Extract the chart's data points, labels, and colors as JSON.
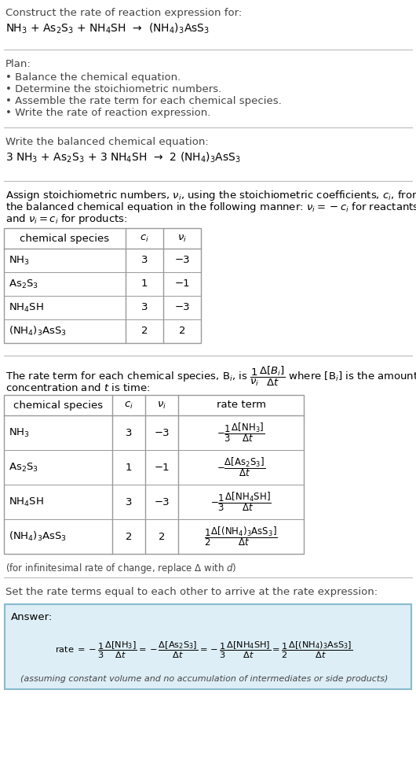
{
  "bg_color": "#ffffff",
  "title_text": "Construct the rate of reaction expression for:",
  "reaction_unbalanced": "NH$_3$ + As$_2$S$_3$ + NH$_4$SH  →  (NH$_4$)$_3$AsS$_3$",
  "plan_header": "Plan:",
  "plan_items": [
    "• Balance the chemical equation.",
    "• Determine the stoichiometric numbers.",
    "• Assemble the rate term for each chemical species.",
    "• Write the rate of reaction expression."
  ],
  "balanced_header": "Write the balanced chemical equation:",
  "reaction_balanced": "3 NH$_3$ + As$_2$S$_3$ + 3 NH$_4$SH  →  2 (NH$_4$)$_3$AsS$_3$",
  "stoich_intro_lines": [
    "Assign stoichiometric numbers, $\\nu_i$, using the stoichiometric coefficients, $c_i$, from",
    "the balanced chemical equation in the following manner: $\\nu_i = -c_i$ for reactants",
    "and $\\nu_i = c_i$ for products:"
  ],
  "table1_headers": [
    "chemical species",
    "$c_i$",
    "$\\nu_i$"
  ],
  "table1_rows": [
    [
      "NH$_3$",
      "3",
      "−3"
    ],
    [
      "As$_2$S$_3$",
      "1",
      "−1"
    ],
    [
      "NH$_4$SH",
      "3",
      "−3"
    ],
    [
      "(NH$_4$)$_3$AsS$_3$",
      "2",
      "2"
    ]
  ],
  "rate_intro1": "The rate term for each chemical species, B$_i$, is $\\dfrac{1}{\\nu_i}\\dfrac{\\Delta[B_i]}{\\Delta t}$ where [B$_i$] is the amount",
  "rate_intro2": "concentration and $t$ is time:",
  "table2_headers": [
    "chemical species",
    "$c_i$",
    "$\\nu_i$",
    "rate term"
  ],
  "table2_rows": [
    [
      "NH$_3$",
      "3",
      "−3",
      "$-\\dfrac{1}{3}\\dfrac{\\Delta[\\mathrm{NH_3}]}{\\Delta t}$"
    ],
    [
      "As$_2$S$_3$",
      "1",
      "−1",
      "$-\\dfrac{\\Delta[\\mathrm{As_2S_3}]}{\\Delta t}$"
    ],
    [
      "NH$_4$SH",
      "3",
      "−3",
      "$-\\dfrac{1}{3}\\dfrac{\\Delta[\\mathrm{NH_4SH}]}{\\Delta t}$"
    ],
    [
      "(NH$_4$)$_3$AsS$_3$",
      "2",
      "2",
      "$\\dfrac{1}{2}\\dfrac{\\Delta[(\\mathrm{NH_4})_3\\mathrm{AsS_3}]}{\\Delta t}$"
    ]
  ],
  "infinitesimal_note": "(for infinitesimal rate of change, replace Δ with $d$)",
  "set_rate_text": "Set the rate terms equal to each other to arrive at the rate expression:",
  "answer_box_color": "#ddeef6",
  "answer_border_color": "#88bbcc",
  "answer_header": "Answer:",
  "answer_rate_expr": "rate $= -\\dfrac{1}{3}\\dfrac{\\Delta[\\mathrm{NH_3}]}{\\Delta t} = -\\dfrac{\\Delta[\\mathrm{As_2S_3}]}{\\Delta t} = -\\dfrac{1}{3}\\dfrac{\\Delta[\\mathrm{NH_4SH}]}{\\Delta t} = \\dfrac{1}{2}\\dfrac{\\Delta[(\\mathrm{NH_4})_3\\mathrm{AsS_3}]}{\\Delta t}$",
  "answer_note": "(assuming constant volume and no accumulation of intermediates or side products)"
}
